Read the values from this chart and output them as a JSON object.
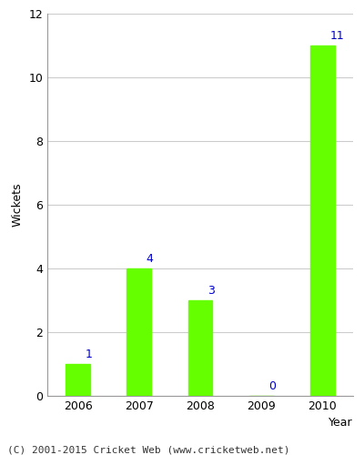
{
  "years": [
    "2006",
    "2007",
    "2008",
    "2009",
    "2010"
  ],
  "values": [
    1,
    4,
    3,
    0,
    11
  ],
  "bar_color": "#66ff00",
  "bar_edge_color": "#66ff00",
  "label_color": "#0000cc",
  "xlabel": "Year",
  "ylabel": "Wickets",
  "ylim": [
    0,
    12
  ],
  "yticks": [
    0,
    2,
    4,
    6,
    8,
    10,
    12
  ],
  "grid_color": "#cccccc",
  "bg_color": "#ffffff",
  "footer": "(C) 2001-2015 Cricket Web (www.cricketweb.net)",
  "label_fontsize": 9,
  "axis_label_fontsize": 9,
  "tick_fontsize": 9,
  "footer_fontsize": 8
}
